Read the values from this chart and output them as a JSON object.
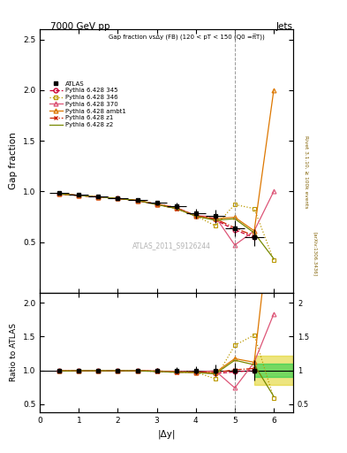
{
  "title_top": "7000 GeV pp",
  "title_right": "Jets",
  "watermark": "ATLAS_2011_S9126244",
  "right_label": "Rivet 3.1.10, ≥ 100k events",
  "arxiv_label": "[arXiv:1306.3436]",
  "main_title": "Gap fraction vsΔy (FB) (120 < pT < 150 (Q0 =π̅T))",
  "xlabel": "|Δy|",
  "ylabel_main": "Gap fraction",
  "ylabel_ratio": "Ratio to ATLAS",
  "xlim": [
    0,
    6.5
  ],
  "ylim_main": [
    0.0,
    2.6
  ],
  "ylim_ratio": [
    0.38,
    2.15
  ],
  "atlas_x": [
    0.5,
    1.0,
    1.5,
    2.0,
    2.5,
    3.0,
    3.5,
    4.0,
    4.5,
    5.0,
    5.5
  ],
  "atlas_y": [
    0.985,
    0.965,
    0.95,
    0.935,
    0.915,
    0.885,
    0.855,
    0.78,
    0.755,
    0.635,
    0.545
  ],
  "atlas_yerr": [
    0.015,
    0.015,
    0.015,
    0.015,
    0.02,
    0.025,
    0.035,
    0.045,
    0.065,
    0.075,
    0.085
  ],
  "atlas_xerr": [
    0.25,
    0.25,
    0.25,
    0.25,
    0.25,
    0.25,
    0.25,
    0.25,
    0.25,
    0.25,
    0.25
  ],
  "py345_x": [
    0.5,
    1.0,
    1.5,
    2.0,
    2.5,
    3.0,
    3.5,
    4.0,
    4.5,
    5.0,
    5.5
  ],
  "py345_y": [
    0.975,
    0.96,
    0.945,
    0.93,
    0.91,
    0.875,
    0.84,
    0.76,
    0.72,
    0.62,
    0.545
  ],
  "py346_x": [
    0.5,
    1.0,
    1.5,
    2.0,
    2.5,
    3.0,
    3.5,
    4.0,
    4.5,
    5.0,
    5.5,
    6.0
  ],
  "py346_y": [
    0.975,
    0.96,
    0.945,
    0.93,
    0.91,
    0.875,
    0.84,
    0.76,
    0.66,
    0.87,
    0.83,
    0.32
  ],
  "py370_x": [
    0.5,
    1.0,
    1.5,
    2.0,
    2.5,
    3.0,
    3.5,
    4.0,
    4.5,
    5.0,
    5.5,
    6.0
  ],
  "py370_y": [
    0.975,
    0.96,
    0.945,
    0.93,
    0.91,
    0.875,
    0.84,
    0.76,
    0.75,
    0.47,
    0.61,
    1.0
  ],
  "pyambt1_x": [
    0.5,
    1.0,
    1.5,
    2.0,
    2.5,
    3.0,
    3.5,
    4.0,
    4.5,
    5.0,
    5.5,
    6.0
  ],
  "pyambt1_y": [
    0.975,
    0.96,
    0.945,
    0.93,
    0.91,
    0.875,
    0.835,
    0.755,
    0.73,
    0.745,
    0.61,
    2.0
  ],
  "pyz1_x": [
    0.5,
    1.0,
    1.5,
    2.0,
    2.5,
    3.0,
    3.5,
    4.0,
    4.5,
    5.0,
    5.5
  ],
  "pyz1_y": [
    0.975,
    0.96,
    0.945,
    0.93,
    0.91,
    0.87,
    0.83,
    0.76,
    0.73,
    0.64,
    0.56
  ],
  "pyz2_x": [
    0.5,
    1.0,
    1.5,
    2.0,
    2.5,
    3.0,
    3.5,
    4.0,
    4.5,
    5.0,
    5.5,
    6.0
  ],
  "pyz2_y": [
    0.975,
    0.96,
    0.945,
    0.93,
    0.91,
    0.87,
    0.83,
    0.755,
    0.715,
    0.73,
    0.59,
    0.335
  ],
  "color_345": "#cc0033",
  "color_346": "#bb9900",
  "color_370": "#dd5577",
  "color_ambt1": "#dd7700",
  "color_z1": "#cc2200",
  "color_z2": "#778800",
  "dashed_vline_x": 5.0,
  "green_band_xmin": 5.5,
  "green_band_xmax": 6.5,
  "green_band_ymin": 0.9,
  "green_band_ymax": 1.1,
  "yellow_band_xmin": 5.5,
  "yellow_band_xmax": 6.5,
  "yellow_band_ymin": 0.78,
  "yellow_band_ymax": 1.22
}
